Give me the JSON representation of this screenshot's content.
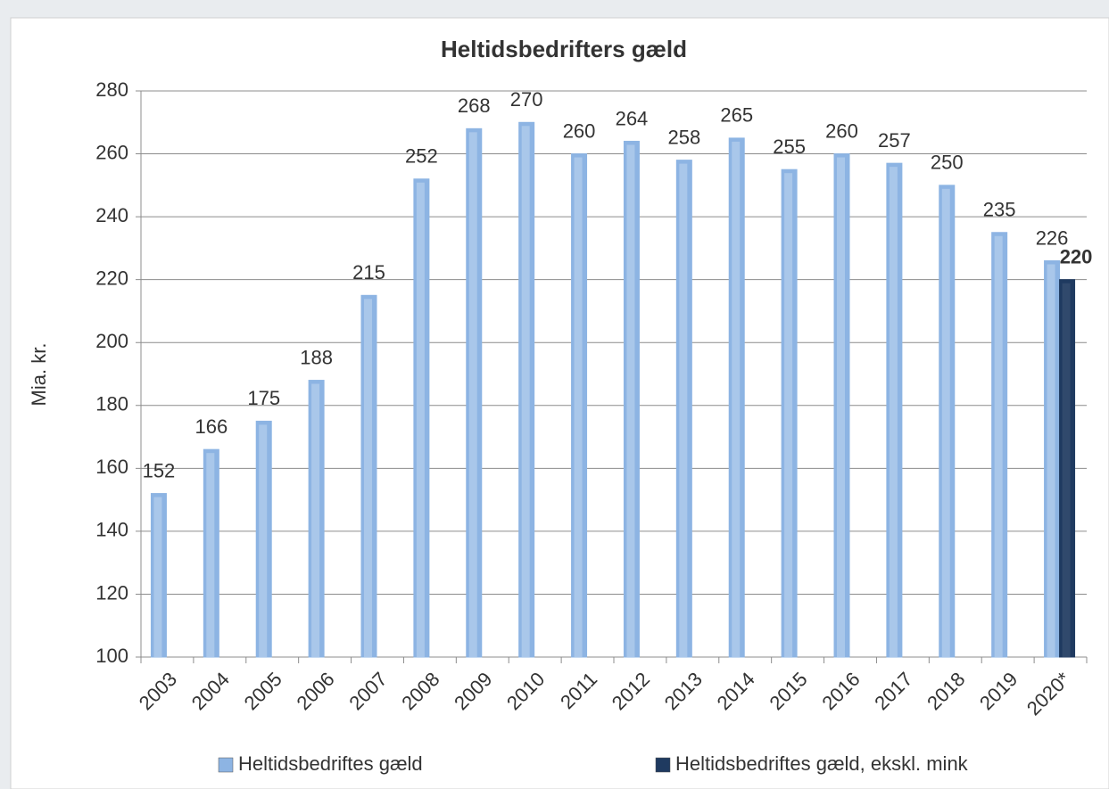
{
  "chart_data": {
    "type": "bar",
    "title": "Heltidsbedrifters gæld",
    "y_label": "Mia. kr.",
    "categories": [
      "2003",
      "2004",
      "2005",
      "2006",
      "2007",
      "2008",
      "2009",
      "2010",
      "2011",
      "2012",
      "2013",
      "2014",
      "2015",
      "2016",
      "2017",
      "2018",
      "2019",
      "2020*"
    ],
    "series": [
      {
        "name": "Heltidsbedriftes gæld",
        "color": "#8db4e3",
        "values": [
          152,
          166,
          175,
          188,
          215,
          252,
          268,
          270,
          260,
          264,
          258,
          265,
          255,
          260,
          257,
          250,
          235,
          226
        ]
      },
      {
        "name": "Heltidsbedriftes gæld, ekskl. mink",
        "color": "#1f3a60",
        "values": [
          null,
          null,
          null,
          null,
          null,
          null,
          null,
          null,
          null,
          null,
          null,
          null,
          null,
          null,
          null,
          null,
          null,
          220
        ]
      }
    ],
    "ylim": [
      100,
      280
    ],
    "yticks": [
      100,
      120,
      140,
      160,
      180,
      200,
      220,
      240,
      260,
      280
    ],
    "grid": true,
    "legend": "bottom"
  }
}
